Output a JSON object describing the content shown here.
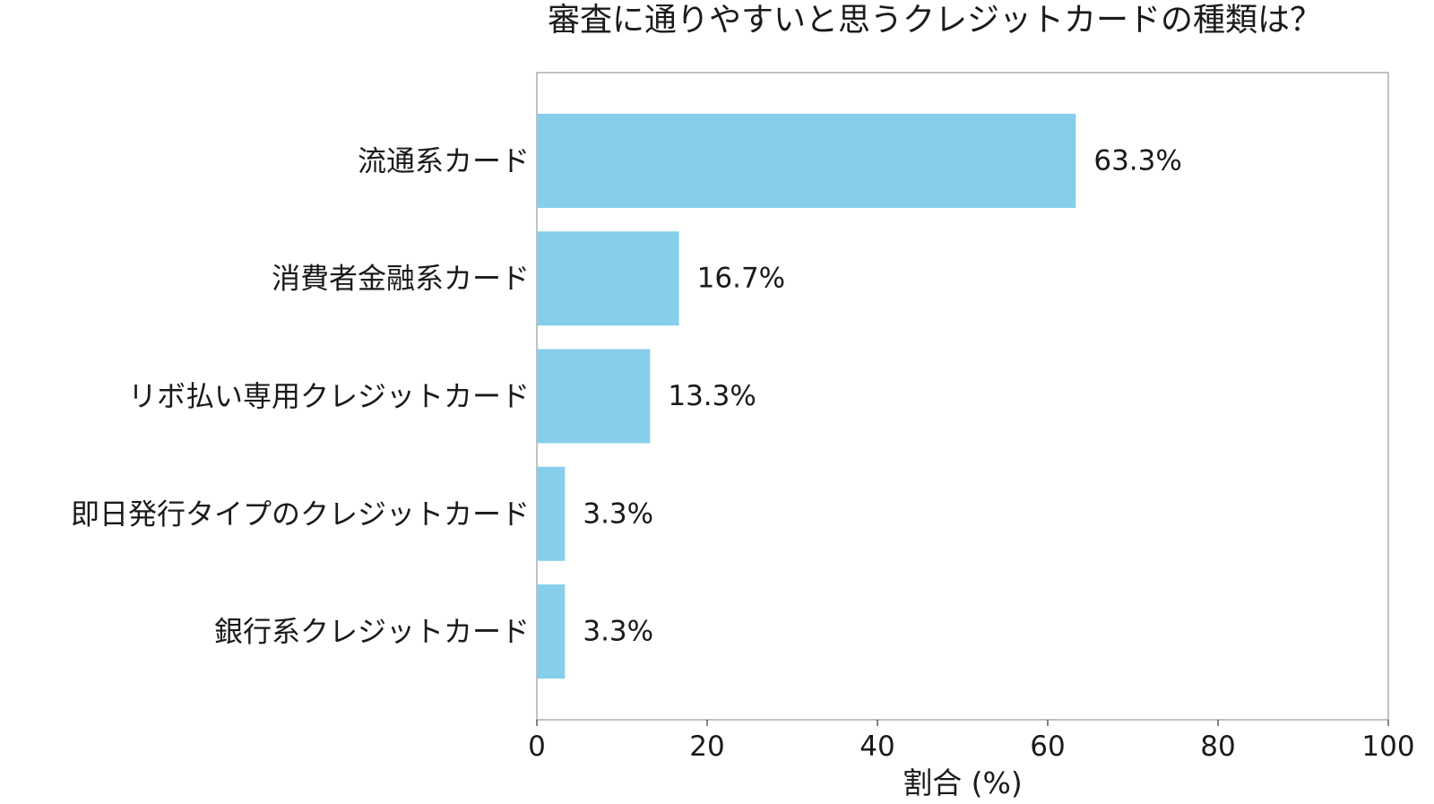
{
  "chart_data": {
    "type": "bar",
    "orientation": "horizontal",
    "title": "審査に通りやすいと思うクレジットカードの種類は？",
    "categories": [
      "流通系カード",
      "消費者金融系カード",
      "リボ払い専用クレジットカード",
      "即日発行タイプのクレジットカード",
      "銀行系クレジットカード"
    ],
    "values": [
      63.3,
      16.7,
      13.3,
      3.3,
      3.3
    ],
    "value_labels": [
      "63.3%",
      "16.7%",
      "13.3%",
      "3.3%",
      "3.3%"
    ],
    "xlabel": "割合 (%)",
    "ylabel": "",
    "xlim": [
      0,
      100
    ],
    "xticks": [
      0,
      20,
      40,
      60,
      80,
      100
    ],
    "xtick_labels": [
      "0",
      "20",
      "40",
      "60",
      "80",
      "100"
    ],
    "grid": false,
    "legend": "none",
    "bar_color": "#87ceeb"
  }
}
